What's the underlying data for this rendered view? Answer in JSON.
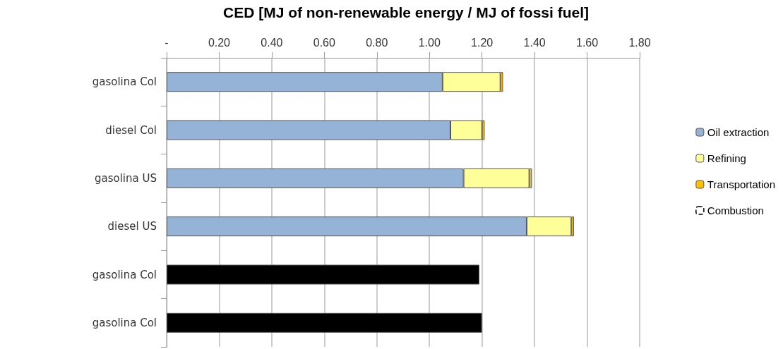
{
  "chart_data": {
    "type": "bar",
    "orientation": "horizontal",
    "stacked": true,
    "title": "CED [MJ of non-renewable energy / MJ of fossi fuel]",
    "categories": [
      "gasolina Col",
      "diesel Col",
      "gasolina US",
      "diesel US",
      "gasolina Col",
      "gasolina Col"
    ],
    "series": [
      {
        "name": "Oil extraction",
        "color": "#95b3d7",
        "values": [
          1.05,
          1.08,
          1.13,
          1.37,
          null,
          null
        ]
      },
      {
        "name": "Refining",
        "color": "#ffff99",
        "values": [
          0.22,
          0.12,
          0.25,
          0.17,
          null,
          null
        ]
      },
      {
        "name": "Transportation",
        "color": "#ffc000",
        "values": [
          0.01,
          0.01,
          0.01,
          0.01,
          null,
          null
        ]
      },
      {
        "name": "Combustion",
        "color": "#ffffff",
        "values": [
          null,
          null,
          null,
          null,
          null,
          null
        ]
      },
      {
        "color": "#000000",
        "values": [
          null,
          null,
          null,
          null,
          1.19,
          1.2
        ]
      }
    ],
    "xlim": [
      0,
      1.8
    ],
    "xticks": [
      {
        "value": 0,
        "label": "-"
      },
      {
        "value": 0.2,
        "label": "0.20"
      },
      {
        "value": 0.4,
        "label": "0.40"
      },
      {
        "value": 0.6,
        "label": "0.60"
      },
      {
        "value": 0.8,
        "label": "0.80"
      },
      {
        "value": 1,
        "label": "1.00"
      },
      {
        "value": 1.2,
        "label": "1.20"
      },
      {
        "value": 1.4,
        "label": "1.40"
      },
      {
        "value": 1.6,
        "label": "1.60"
      },
      {
        "value": 1.8,
        "label": "1.80"
      }
    ],
    "grid": "x",
    "legend": "right"
  }
}
